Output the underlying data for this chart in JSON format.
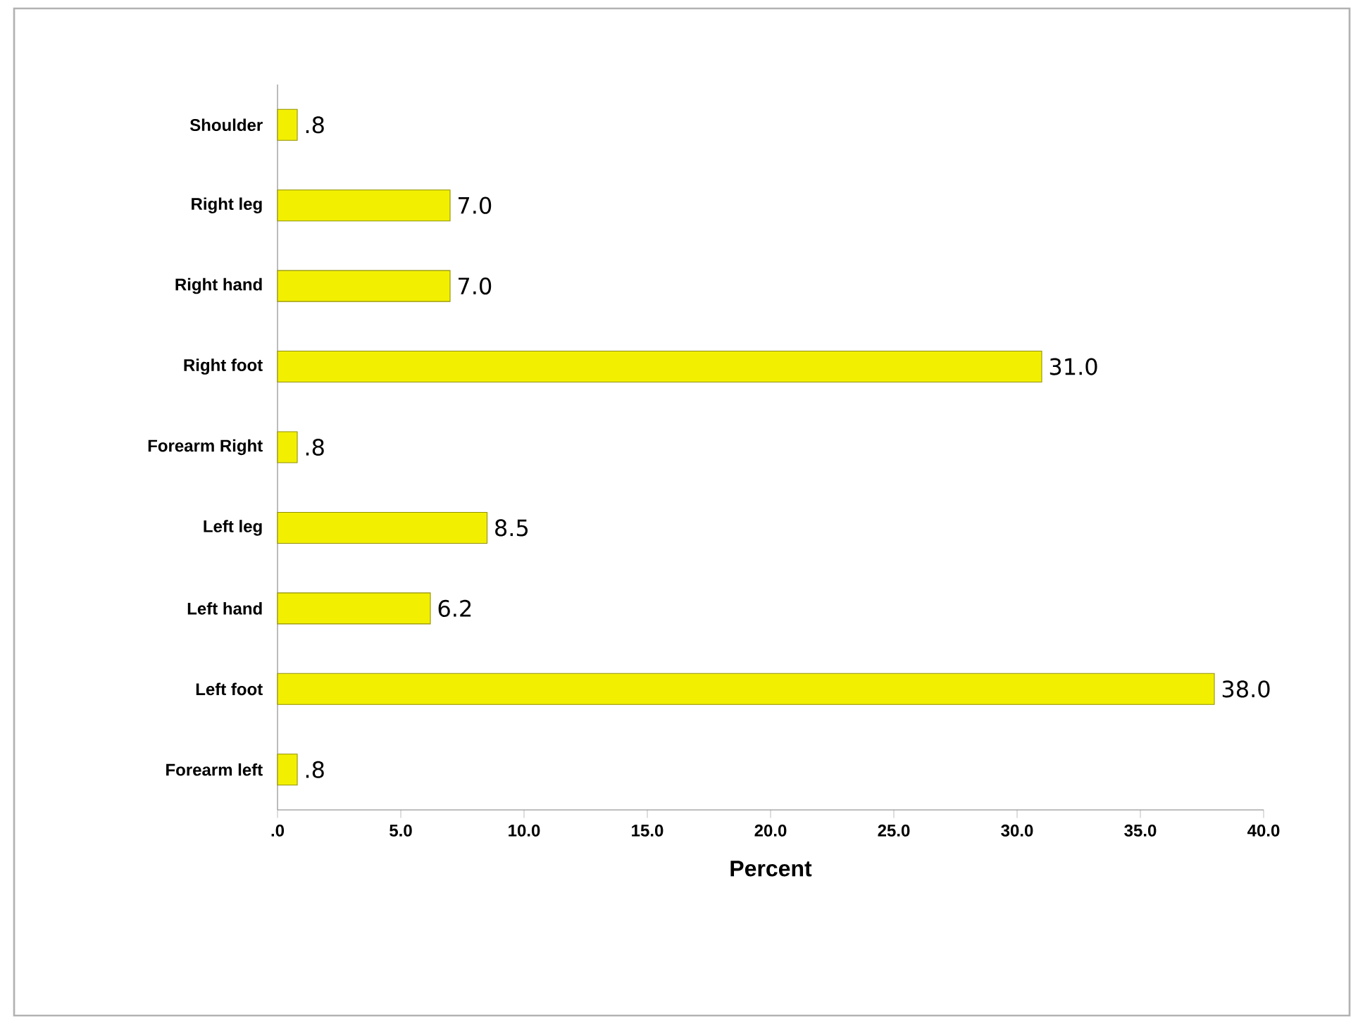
{
  "chart_data": {
    "type": "bar",
    "orientation": "horizontal",
    "xlabel": "Percent",
    "categories": [
      "Shoulder",
      "Right leg",
      "Right hand",
      "Right foot",
      "Forearm Right",
      "Left leg",
      "Left hand",
      "Left foot",
      "Forearm left"
    ],
    "values": [
      0.8,
      7.0,
      7.0,
      31.0,
      0.8,
      8.5,
      6.2,
      38.0,
      0.8
    ],
    "value_labels": [
      ".8",
      "7.0",
      "7.0",
      "31.0",
      ".8",
      "8.5",
      "6.2",
      "38.0",
      ".8"
    ],
    "color": "#f2f000",
    "xlim": [
      0,
      40
    ],
    "xticks": [
      {
        "value": 0,
        "label": ".0"
      },
      {
        "value": 5,
        "label": "5.0"
      },
      {
        "value": 10,
        "label": "10.0"
      },
      {
        "value": 15,
        "label": "15.0"
      },
      {
        "value": 20,
        "label": "20.0"
      },
      {
        "value": 25,
        "label": "25.0"
      },
      {
        "value": 30,
        "label": "30.0"
      },
      {
        "value": 35,
        "label": "35.0"
      },
      {
        "value": 40,
        "label": "40.0"
      }
    ],
    "grid": false
  }
}
